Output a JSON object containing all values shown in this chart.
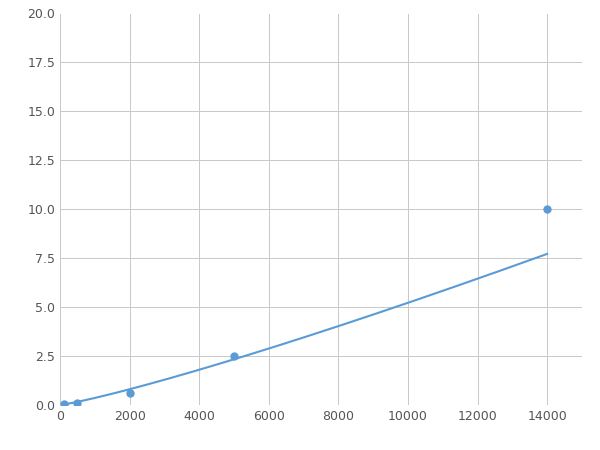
{
  "x": [
    125,
    500,
    2000,
    5000,
    14000
  ],
  "y": [
    0.05,
    0.1,
    0.6,
    2.5,
    10.0
  ],
  "line_color": "#5b9bd5",
  "marker_color": "#5b9bd5",
  "marker_style": "o",
  "marker_size": 5,
  "xlim": [
    0,
    15000
  ],
  "ylim": [
    0,
    20
  ],
  "xticks": [
    0,
    2000,
    4000,
    6000,
    8000,
    10000,
    12000,
    14000
  ],
  "yticks": [
    0.0,
    2.5,
    5.0,
    7.5,
    10.0,
    12.5,
    15.0,
    17.5,
    20.0
  ],
  "grid": true,
  "grid_color": "#c8c8c8",
  "background_color": "#ffffff",
  "linewidth": 1.5,
  "figsize": [
    6.0,
    4.5
  ],
  "dpi": 100
}
